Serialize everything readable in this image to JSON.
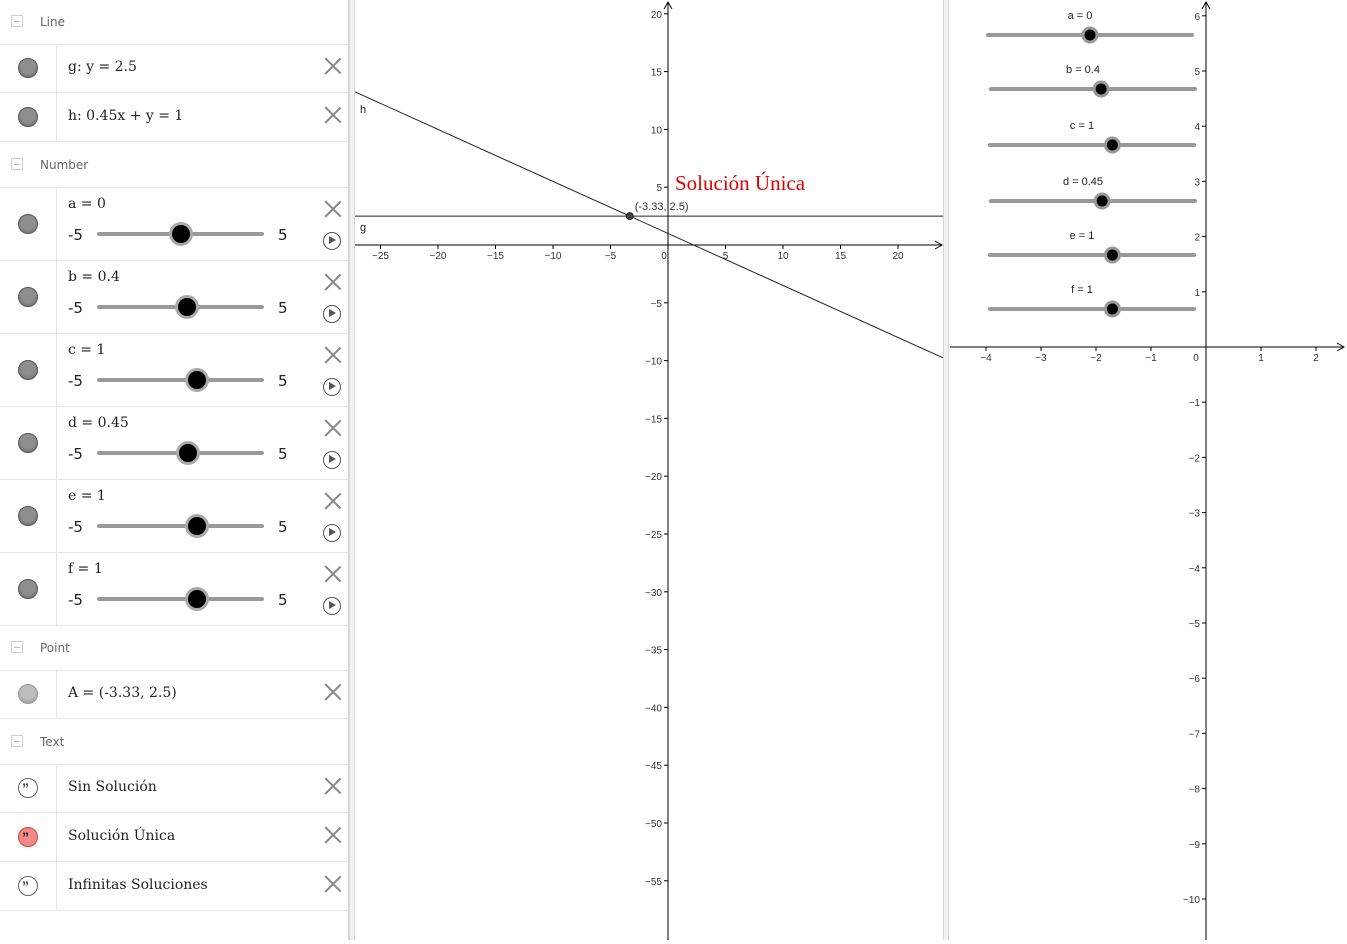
{
  "algebra": {
    "groups": {
      "line": "Line",
      "number": "Number",
      "point": "Point",
      "text": "Text"
    },
    "lines": [
      {
        "expr": "g: y = 2.5"
      },
      {
        "expr": "h: 0.45x + y = 1"
      }
    ],
    "sliders": [
      {
        "label": "a = 0",
        "min": "-5",
        "max": "5",
        "value": 0
      },
      {
        "label": "b = 0.4",
        "min": "-5",
        "max": "5",
        "value": 0.4
      },
      {
        "label": "c = 1",
        "min": "-5",
        "max": "5",
        "value": 1
      },
      {
        "label": "d = 0.45",
        "min": "-5",
        "max": "5",
        "value": 0.45
      },
      {
        "label": "e = 1",
        "min": "-5",
        "max": "5",
        "value": 1
      },
      {
        "label": "f = 1",
        "min": "-5",
        "max": "5",
        "value": 1
      }
    ],
    "points": [
      {
        "expr": "A = (-3.33, 2.5)"
      }
    ],
    "texts": [
      {
        "expr": "Sin Solución",
        "active": false
      },
      {
        "expr": "Solución Única",
        "active": true
      },
      {
        "expr": "Infinitas Soluciones",
        "active": false
      }
    ]
  },
  "graphics1": {
    "x_ticks": [
      "−25",
      "−20",
      "−15",
      "−10",
      "−5",
      "0",
      "5",
      "10",
      "15",
      "20"
    ],
    "y_ticks": [
      "20",
      "15",
      "10",
      "5",
      "−5",
      "−10",
      "−15",
      "−20",
      "−25",
      "−30",
      "−35",
      "−40",
      "−45",
      "−50",
      "−55"
    ],
    "line_g_label": "g",
    "line_h_label": "h",
    "point_label": "(-3.33, 2.5)",
    "title_text": "Solución Única",
    "title_color": "#e00000",
    "point": {
      "x": -3.33,
      "y": 2.5
    }
  },
  "graphics2": {
    "x_ticks": [
      "−4",
      "−3",
      "−2",
      "−1",
      "0",
      "1",
      "2"
    ],
    "y_ticks": [
      "6",
      "5",
      "4",
      "3",
      "2",
      "1",
      "−1",
      "−2",
      "−3",
      "−4",
      "−5",
      "−6",
      "−7",
      "−8",
      "−9",
      "−10"
    ],
    "sliders": [
      {
        "label": "a = 0",
        "value": 0
      },
      {
        "label": "b = 0.4",
        "value": 0.4
      },
      {
        "label": "c = 1",
        "value": 1
      },
      {
        "label": "d = 0.45",
        "value": 0.45
      },
      {
        "label": "e = 1",
        "value": 1
      },
      {
        "label": "f = 1",
        "value": 1
      }
    ]
  }
}
